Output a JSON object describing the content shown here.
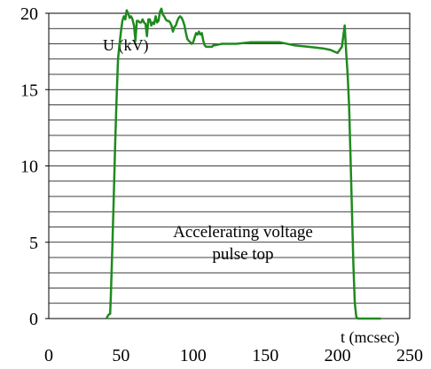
{
  "chart_data": {
    "type": "line",
    "title": "",
    "xlabel": "t (mcsec)",
    "ylabel": "U (kV)",
    "xlim": [
      0,
      250
    ],
    "ylim": [
      0,
      20
    ],
    "xticks": [
      "0",
      "50",
      "100",
      "150",
      "200",
      "250"
    ],
    "yticks": [
      "0",
      "5",
      "10",
      "15",
      "20"
    ],
    "grid": "horizontal",
    "annotation": [
      "Accelerating voltage",
      "pulse top"
    ],
    "series": [
      {
        "color": "#1f8a1f",
        "x": [
          40,
          41,
          42,
          42.5,
          43,
          44,
          45,
          46,
          47,
          48,
          49,
          50,
          51,
          52,
          53,
          54,
          55,
          56,
          57,
          58,
          59,
          60,
          61,
          62,
          63,
          64,
          65,
          66,
          67,
          68,
          69,
          70,
          71,
          72,
          73,
          74,
          75,
          76,
          77,
          78,
          79,
          80,
          81,
          82,
          83,
          84,
          85,
          86,
          87,
          88,
          89,
          90,
          91,
          92,
          93,
          94,
          95,
          96,
          97,
          98,
          99,
          100,
          101,
          102,
          103,
          104,
          105,
          106,
          107,
          108,
          109,
          110,
          111,
          112,
          113,
          114,
          115,
          120,
          130,
          140,
          150,
          160,
          170,
          180,
          190,
          195,
          200,
          203,
          205,
          206,
          207,
          208,
          209,
          210,
          211,
          212,
          213,
          214,
          215,
          216,
          217,
          218,
          219,
          220,
          222,
          225,
          230
        ],
        "y": [
          0,
          0.2,
          0.3,
          0.3,
          1.5,
          4.5,
          8.0,
          11.5,
          14.5,
          17.0,
          18.0,
          18.8,
          19.5,
          19.8,
          19.6,
          20.2,
          20.0,
          19.7,
          19.8,
          19.6,
          19.2,
          18.2,
          19.5,
          19.5,
          19.4,
          19.4,
          19.6,
          19.4,
          19.3,
          18.5,
          19.6,
          19.6,
          19.2,
          19.4,
          19.3,
          19.8,
          19.4,
          19.5,
          20.1,
          20.3,
          19.9,
          19.8,
          19.6,
          19.5,
          19.5,
          19.4,
          19.2,
          18.8,
          19.1,
          19.2,
          19.5,
          19.7,
          19.8,
          19.7,
          19.5,
          19.2,
          18.7,
          18.3,
          18.2,
          18.1,
          18.0,
          18.1,
          18.4,
          18.7,
          18.6,
          18.8,
          18.6,
          18.7,
          18.2,
          17.9,
          17.8,
          17.8,
          17.8,
          17.8,
          17.8,
          17.9,
          17.9,
          18.0,
          18.0,
          18.1,
          18.1,
          18.1,
          17.9,
          17.8,
          17.7,
          17.6,
          17.4,
          17.8,
          19.2,
          17.4,
          16.0,
          14.0,
          10.5,
          7.0,
          3.5,
          1.0,
          0.1,
          0,
          0,
          0,
          0,
          0,
          0,
          0,
          0,
          0,
          0
        ]
      }
    ]
  }
}
